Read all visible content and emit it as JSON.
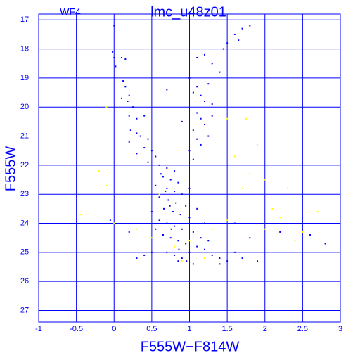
{
  "chart_data": {
    "type": "scatter",
    "title": "lmc_u48z01",
    "subtitle": "WF4",
    "x_label": "F555W−F814W",
    "y_label": "F555W",
    "xlim": [
      -1,
      3
    ],
    "ylim": [
      27.4,
      16.8
    ],
    "y_inverted": true,
    "xticks": [
      -1,
      -0.5,
      0,
      0.5,
      1,
      1.5,
      2,
      2.5,
      3
    ],
    "yticks": [
      17,
      18,
      19,
      20,
      21,
      22,
      23,
      24,
      25,
      26,
      27
    ],
    "grid": true,
    "axis_color": "#0000ff",
    "series": [
      {
        "color": "#0000ff",
        "x": [
          0.0,
          -0.02,
          0.0,
          0.02,
          0.1,
          0.15,
          0.12,
          0.15,
          0.1,
          0.2,
          0.18,
          0.25,
          0.2,
          0.3,
          0.4,
          0.22,
          0.3,
          0.35,
          0.45,
          0.2,
          0.4,
          0.5,
          0.3,
          0.55,
          0.45,
          1.1,
          1.2,
          1.3,
          1.4,
          1.5,
          1.45,
          1.65,
          1.7,
          1.6,
          1.8,
          1.0,
          1.05,
          1.1,
          1.15,
          1.2,
          1.25,
          1.3,
          1.1,
          1.15,
          1.2,
          1.05,
          1.1,
          1.15,
          1.0,
          1.05,
          0.7,
          0.9,
          1.25,
          1.3,
          0.6,
          0.7,
          0.8,
          0.65,
          0.75,
          0.85,
          0.55,
          0.7,
          0.8,
          0.9,
          0.6,
          0.72,
          0.82,
          0.95,
          0.66,
          0.78,
          0.88,
          1.0,
          0.6,
          0.7,
          0.8,
          0.9,
          1.05,
          0.65,
          0.75,
          0.85,
          0.95,
          1.1,
          1.2,
          0.7,
          0.8,
          0.9,
          1.0,
          1.3,
          1.4,
          1.5,
          1.6,
          1.7,
          0.5,
          0.4,
          0.3,
          1.15,
          1.25,
          0.55,
          0.5,
          1.0,
          1.1,
          1.2,
          0.85,
          1.05,
          0.62,
          0.68,
          0.74,
          0.76,
          0.86,
          0.96,
          1.8,
          1.6,
          2.2,
          2.8,
          2.6,
          -0.05,
          0.2,
          1.4,
          1.9
        ],
        "values": [
          17.2,
          18.1,
          18.3,
          18.6,
          18.3,
          18.35,
          19.1,
          19.3,
          19.7,
          19.6,
          19.8,
          20.0,
          20.3,
          20.4,
          20.3,
          20.8,
          20.9,
          21.0,
          21.1,
          21.2,
          21.4,
          21.5,
          21.6,
          21.7,
          21.9,
          18.3,
          18.2,
          18.5,
          18.8,
          17.8,
          18.0,
          17.7,
          17.3,
          17.5,
          17.2,
          19.0,
          19.5,
          19.3,
          19.6,
          19.8,
          19.2,
          19.9,
          20.2,
          20.4,
          20.6,
          20.8,
          21.1,
          21.3,
          21.5,
          21.8,
          19.4,
          20.5,
          21.0,
          20.3,
          22.0,
          22.1,
          22.2,
          22.4,
          22.5,
          22.6,
          22.7,
          22.8,
          22.9,
          23.0,
          23.1,
          23.2,
          23.3,
          23.4,
          23.5,
          23.6,
          23.7,
          23.8,
          23.9,
          24.0,
          24.1,
          24.2,
          24.3,
          24.4,
          24.5,
          24.6,
          24.7,
          24.8,
          24.9,
          25.0,
          25.1,
          25.2,
          25.0,
          25.1,
          25.2,
          25.3,
          25.0,
          25.2,
          25.0,
          25.1,
          25.2,
          24.5,
          24.6,
          24.2,
          23.6,
          22.8,
          23.5,
          24.0,
          25.3,
          25.4,
          22.3,
          22.9,
          23.4,
          24.2,
          24.9,
          25.3,
          24.5,
          24.0,
          24.3,
          24.7,
          24.4,
          23.9,
          24.3,
          25.4,
          25.3
        ]
      },
      {
        "color": "#ffff00",
        "x": [
          -0.45,
          -0.2,
          -0.1,
          0.0,
          0.3,
          0.5,
          0.8,
          1.0,
          1.3,
          1.5,
          1.7,
          1.8,
          2.0,
          2.1,
          2.2,
          2.3,
          2.5,
          2.7,
          2.0,
          1.6,
          1.5,
          1.9,
          -0.1,
          1.2,
          0.9,
          2.4,
          1.75,
          0.6
        ],
        "values": [
          23.7,
          22.2,
          22.7,
          24.0,
          24.2,
          24.5,
          24.8,
          24.6,
          24.2,
          23.9,
          22.8,
          22.3,
          22.5,
          23.5,
          23.8,
          22.8,
          24.3,
          23.6,
          24.2,
          21.7,
          20.4,
          21.3,
          20.0,
          25.2,
          25.3,
          24.6,
          20.4,
          23.0
        ]
      }
    ]
  }
}
